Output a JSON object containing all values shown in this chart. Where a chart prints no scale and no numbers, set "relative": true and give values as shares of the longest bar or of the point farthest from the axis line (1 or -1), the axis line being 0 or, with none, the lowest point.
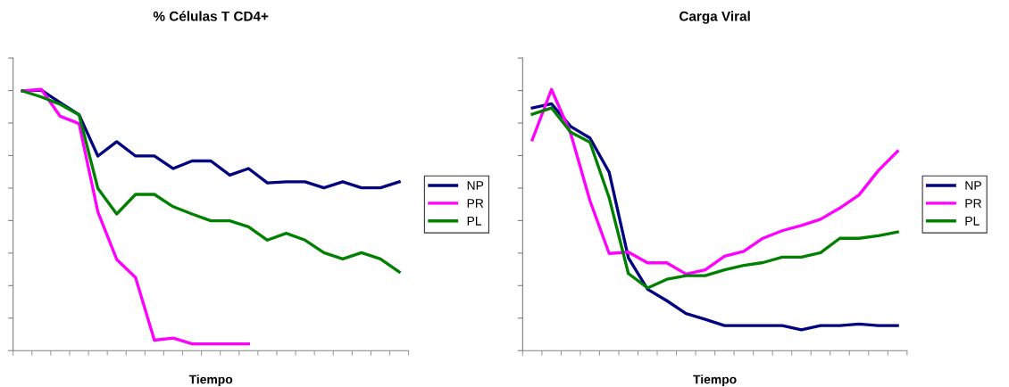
{
  "chart_data": [
    {
      "type": "line",
      "title": "% Células T CD4+",
      "xlabel": "Tiempo",
      "relative": true,
      "legend": "right",
      "grid": false,
      "marker": "none",
      "line_style": "solid",
      "categories": [
        null,
        null,
        null,
        null,
        null,
        null,
        null,
        null,
        null,
        null,
        null,
        null,
        null,
        null,
        null,
        null,
        null,
        null,
        null,
        null,
        null
      ],
      "series": [
        {
          "name": "NP",
          "color": "#000080",
          "values": [
            0.994,
            0.997,
            0.949,
            0.903,
            0.745,
            0.8,
            0.745,
            0.745,
            0.697,
            0.726,
            0.726,
            0.672,
            0.697,
            0.642,
            0.646,
            0.646,
            0.623,
            0.646,
            0.623,
            0.623,
            0.646
          ]
        },
        {
          "name": "PR",
          "color": "#ff00ff",
          "values": [
            0.994,
            1.0,
            0.897,
            0.869,
            0.531,
            0.349,
            0.28,
            0.04,
            0.048,
            0.026,
            0.026,
            0.026,
            0.026,
            null,
            null,
            null,
            null,
            null,
            null,
            null,
            null
          ]
        },
        {
          "name": "PL",
          "color": "#008000",
          "values": [
            0.994,
            0.971,
            0.943,
            0.903,
            0.621,
            0.523,
            0.598,
            0.598,
            0.551,
            0.523,
            0.497,
            0.497,
            0.474,
            0.423,
            0.449,
            0.423,
            0.375,
            0.351,
            0.375,
            0.351,
            0.301
          ]
        }
      ]
    },
    {
      "type": "line",
      "title": "Carga Viral",
      "xlabel": "Tiempo",
      "relative": true,
      "legend": "right",
      "grid": false,
      "marker": "none",
      "line_style": "solid",
      "categories": [
        null,
        null,
        null,
        null,
        null,
        null,
        null,
        null,
        null,
        null,
        null,
        null,
        null,
        null,
        null,
        null,
        null,
        null,
        null,
        null
      ],
      "series": [
        {
          "name": "NP",
          "color": "#000080",
          "values": [
            0.929,
            0.945,
            0.858,
            0.814,
            0.683,
            0.355,
            0.235,
            0.191,
            0.142,
            0.12,
            0.096,
            0.096,
            0.096,
            0.096,
            0.08,
            0.096,
            0.096,
            0.102,
            0.096,
            0.096
          ]
        },
        {
          "name": "PR",
          "color": "#ff00ff",
          "values": [
            0.807,
            1.0,
            0.831,
            0.574,
            0.372,
            0.377,
            0.336,
            0.336,
            0.293,
            0.309,
            0.361,
            0.38,
            0.43,
            0.459,
            0.479,
            0.503,
            0.546,
            0.596,
            0.689,
            0.763
          ]
        },
        {
          "name": "PL",
          "color": "#008000",
          "values": [
            0.905,
            0.929,
            0.836,
            0.798,
            0.585,
            0.295,
            0.24,
            0.273,
            0.287,
            0.287,
            0.309,
            0.326,
            0.337,
            0.358,
            0.358,
            0.375,
            0.43,
            0.43,
            0.44,
            0.454
          ]
        }
      ]
    }
  ]
}
